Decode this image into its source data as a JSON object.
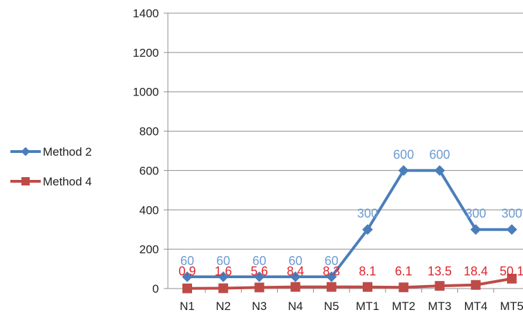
{
  "chart_data": {
    "type": "line",
    "title": "",
    "xlabel": "",
    "ylabel": "",
    "categories": [
      "N1",
      "N2",
      "N3",
      "N4",
      "N5",
      "MT1",
      "MT2",
      "MT3",
      "MT4",
      "MT5"
    ],
    "ylim": [
      0,
      1400
    ],
    "yticks": [
      0,
      200,
      400,
      600,
      800,
      1000,
      1200,
      1400
    ],
    "grid": true,
    "legend_position": "left",
    "series": [
      {
        "name": "Method 2",
        "color": "#4a7ebb",
        "label_color": "#6c9bd2",
        "marker": "diamond",
        "values": [
          60,
          60,
          60,
          60,
          60,
          300,
          600,
          600,
          300,
          300
        ],
        "labels": [
          "60",
          "60",
          "60",
          "60",
          "60",
          "300",
          "600",
          "600",
          "300",
          "300"
        ]
      },
      {
        "name": "Method 4",
        "color": "#be4b48",
        "label_color": "#e0242c",
        "marker": "square",
        "values": [
          0.9,
          1.6,
          5.6,
          8.4,
          8.3,
          8.1,
          6.1,
          13.5,
          18.4,
          50.1
        ],
        "labels": [
          "0.9",
          "1.6",
          "5.6",
          "8.4",
          "8.3",
          "8.1",
          "6.1",
          "13.5",
          "18.4",
          "50.1"
        ]
      }
    ]
  }
}
